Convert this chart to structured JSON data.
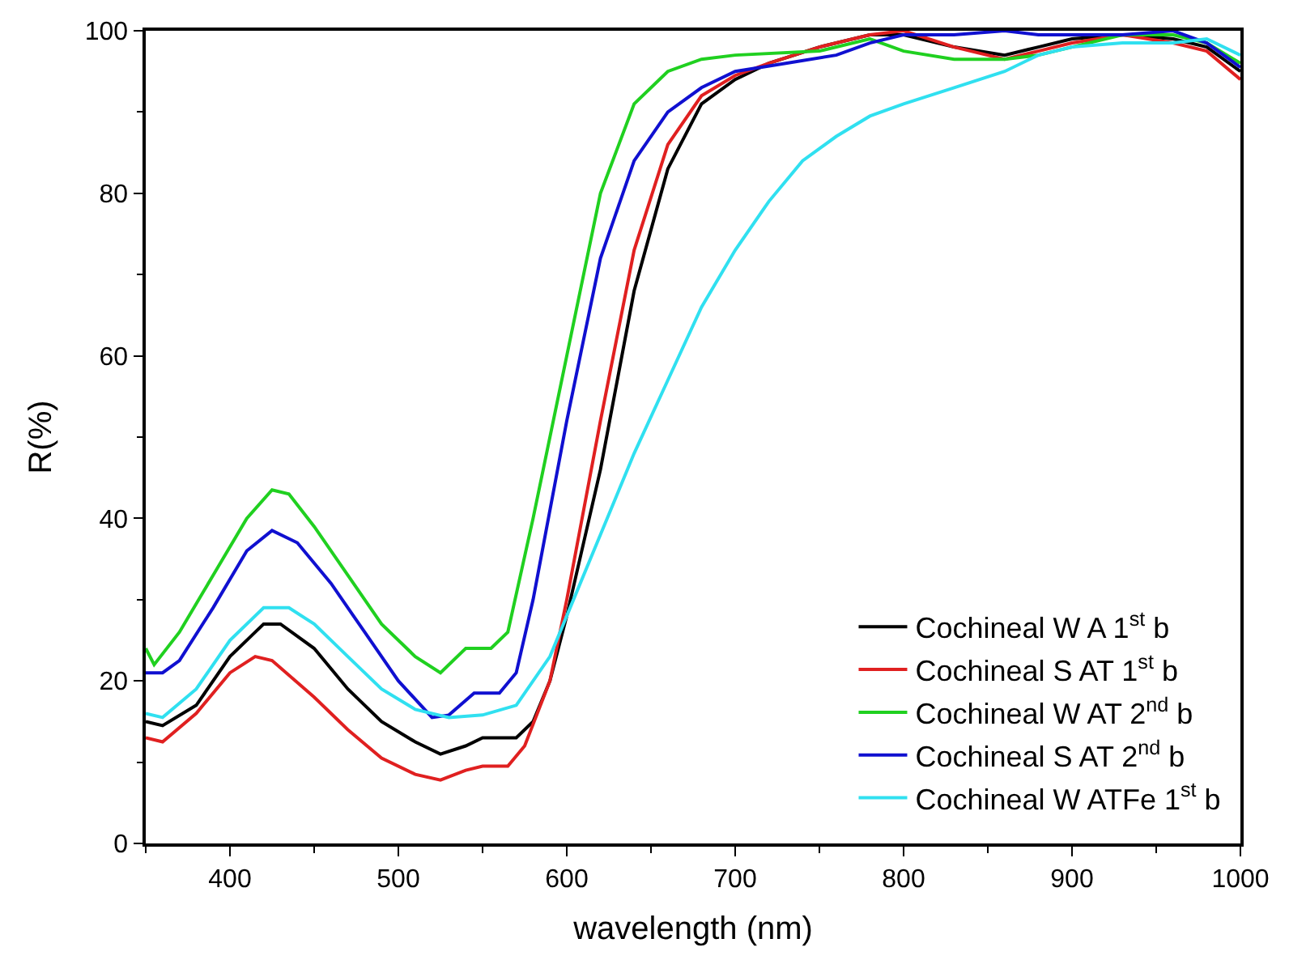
{
  "chart_data": {
    "type": "line",
    "xlabel": "wavelength (nm)",
    "ylabel": "R(%)",
    "xlim": [
      350,
      1000
    ],
    "xticks": [
      400,
      500,
      600,
      700,
      800,
      900,
      1000
    ],
    "ylim": [
      0,
      100
    ],
    "yticks": [
      0,
      20,
      40,
      60,
      80,
      100
    ],
    "legend": "bottom right",
    "marker": "none",
    "line_style": "solid",
    "series": [
      {
        "name": "Cochineal W A 1$^{st}$ b",
        "color": "#000000",
        "x": [
          350,
          360,
          380,
          400,
          420,
          430,
          450,
          470,
          490,
          510,
          525,
          540,
          550,
          570,
          580,
          590,
          600,
          620,
          640,
          660,
          680,
          700,
          720,
          750,
          780,
          800,
          830,
          860,
          880,
          900,
          930,
          960,
          980,
          1000
        ],
        "values": [
          15,
          14.5,
          17,
          23,
          27,
          27,
          24,
          19,
          15,
          12.5,
          11,
          12,
          13,
          13,
          15,
          20,
          28,
          46,
          68,
          83,
          91,
          94,
          96,
          98,
          99.5,
          99.5,
          98,
          97,
          98,
          99,
          99.5,
          99,
          98,
          95
        ]
      },
      {
        "name": "Cochineal S AT 1$^{st}$ b",
        "color": "#e02020",
        "x": [
          350,
          360,
          380,
          400,
          415,
          425,
          450,
          470,
          490,
          510,
          525,
          540,
          550,
          565,
          575,
          590,
          600,
          620,
          640,
          660,
          680,
          700,
          720,
          750,
          780,
          800,
          830,
          860,
          880,
          900,
          930,
          960,
          980,
          1000
        ],
        "values": [
          13,
          12.5,
          16,
          21,
          23,
          22.5,
          18,
          14,
          10.5,
          8.5,
          7.8,
          9,
          9.5,
          9.5,
          12,
          20,
          30,
          52,
          73,
          86,
          92,
          94.5,
          96,
          98,
          99.5,
          100,
          98,
          96.5,
          97.5,
          98.5,
          99.5,
          98.5,
          97.5,
          94
        ]
      },
      {
        "name": "Cochineal W AT 2$^{nd}$ b",
        "color": "#20d020",
        "x": [
          350,
          355,
          370,
          390,
          410,
          425,
          435,
          450,
          470,
          490,
          510,
          525,
          540,
          555,
          565,
          580,
          600,
          620,
          640,
          660,
          680,
          700,
          750,
          780,
          800,
          830,
          860,
          880,
          900,
          930,
          960,
          980,
          1000
        ],
        "values": [
          24,
          22,
          26,
          33,
          40,
          43.5,
          43,
          39,
          33,
          27,
          23,
          21,
          24,
          24,
          26,
          40,
          60,
          80,
          91,
          95,
          96.5,
          97,
          97.5,
          99,
          97.5,
          96.5,
          96.5,
          97,
          98,
          99.5,
          99.5,
          98.5,
          96
        ]
      },
      {
        "name": "Cochineal S AT 2$^{nd}$ b",
        "color": "#1010d0",
        "x": [
          350,
          360,
          370,
          390,
          410,
          425,
          440,
          460,
          480,
          500,
          520,
          530,
          545,
          560,
          570,
          580,
          600,
          620,
          640,
          660,
          680,
          700,
          730,
          760,
          780,
          800,
          830,
          860,
          880,
          900,
          930,
          960,
          980,
          1000
        ],
        "values": [
          21,
          21,
          22.5,
          29,
          36,
          38.5,
          37,
          32,
          26,
          20,
          15.5,
          15.8,
          18.5,
          18.5,
          21,
          30,
          52,
          72,
          84,
          90,
          93,
          95,
          96,
          97,
          98.5,
          99.5,
          99.5,
          100,
          99.5,
          99.5,
          99.5,
          100,
          98.5,
          95.5
        ]
      },
      {
        "name": "Cochineal W ATFe 1$^{st}$ b",
        "color": "#30e0f0",
        "x": [
          350,
          360,
          380,
          400,
          420,
          435,
          450,
          470,
          490,
          510,
          530,
          550,
          570,
          590,
          600,
          620,
          640,
          660,
          680,
          700,
          720,
          740,
          760,
          780,
          800,
          830,
          860,
          880,
          900,
          930,
          960,
          980,
          1000
        ],
        "values": [
          16,
          15.5,
          19,
          25,
          29,
          29,
          27,
          23,
          19,
          16.5,
          15.5,
          15.8,
          17,
          23,
          28,
          38,
          48,
          57,
          66,
          73,
          79,
          84,
          87,
          89.5,
          91,
          93,
          95,
          97,
          98,
          98.5,
          98.5,
          99,
          97
        ]
      }
    ]
  }
}
